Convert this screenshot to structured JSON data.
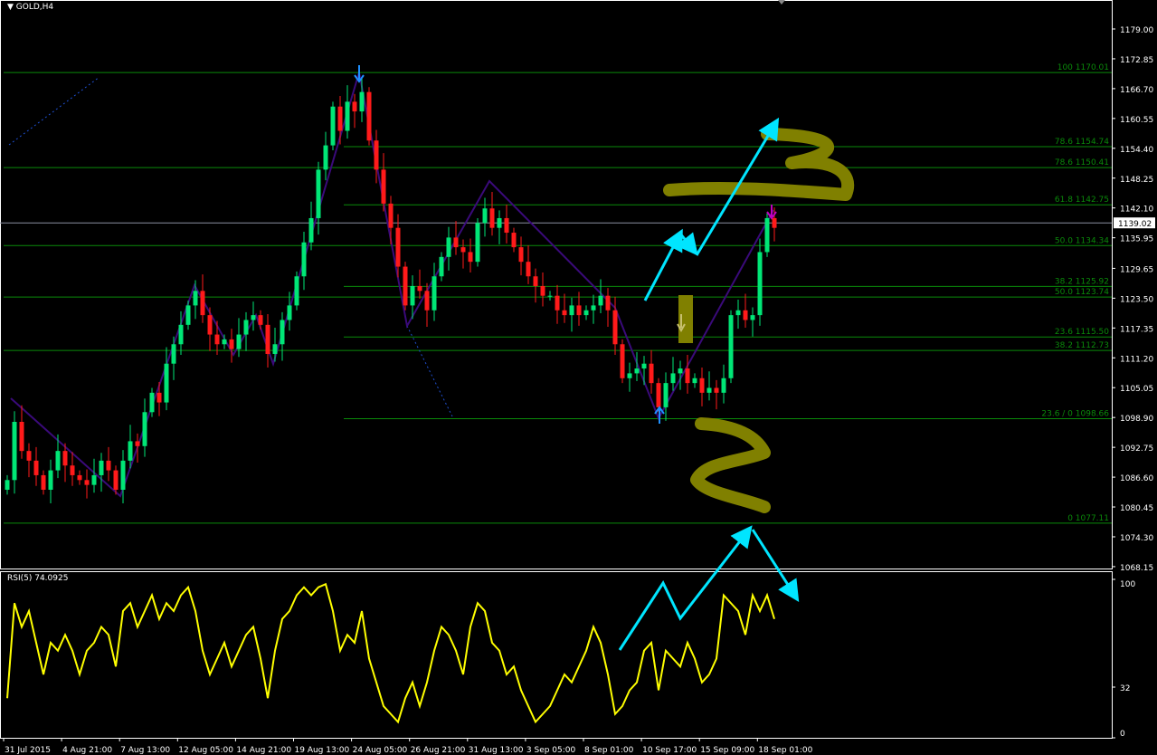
{
  "chart_data": [
    {
      "type": "candlestick",
      "title": "GOLD,H4",
      "ylim": [
        1065.07,
        1182.07
      ],
      "y_ticks": [
        "1179.00",
        "1172.85",
        "1166.70",
        "1160.55",
        "1154.40",
        "1148.25",
        "1142.10",
        "1135.95",
        "1129.65",
        "1123.50",
        "1117.35",
        "1111.20",
        "1105.05",
        "1098.90",
        "1092.75",
        "1086.60",
        "1080.45",
        "1074.30",
        "1068.15"
      ],
      "x_ticks": [
        "31 Jul 2015",
        "4 Aug 21:00",
        "7 Aug 13:00",
        "12 Aug 05:00",
        "14 Aug 21:00",
        "19 Aug 13:00",
        "24 Aug 05:00",
        "26 Aug 21:00",
        "31 Aug 13:00",
        "3 Sep 05:00",
        "8 Sep 01:00",
        "10 Sep 17:00",
        "15 Sep 09:00",
        "18 Sep 01:00"
      ],
      "current_price": "1139.02",
      "closes": [
        1086,
        1098,
        1092,
        1090,
        1087,
        1084,
        1088,
        1092,
        1089,
        1087,
        1086,
        1085,
        1087,
        1090,
        1088,
        1084,
        1090,
        1094,
        1093,
        1100,
        1104,
        1102,
        1110,
        1114,
        1118,
        1122,
        1125,
        1120,
        1116,
        1114,
        1115,
        1113,
        1116,
        1119,
        1120,
        1118,
        1112,
        1114,
        1119,
        1122,
        1128,
        1135,
        1140,
        1150,
        1155,
        1163,
        1158,
        1164,
        1162,
        1166,
        1156,
        1150,
        1143,
        1138,
        1130,
        1122,
        1126,
        1125,
        1121,
        1128,
        1132,
        1136,
        1134,
        1133,
        1131,
        1139,
        1142,
        1138,
        1140,
        1137,
        1134,
        1131,
        1128,
        1126,
        1124,
        1124,
        1121,
        1120,
        1122,
        1120,
        1121,
        1122,
        1124,
        1121,
        1114,
        1107,
        1108,
        1109,
        1110,
        1106,
        1101,
        1106,
        1108,
        1109,
        1106,
        1107,
        1104,
        1105,
        1104,
        1107,
        1120,
        1121,
        1119,
        1120,
        1133,
        1140,
        1138
      ],
      "fibonacci_levels": [
        {
          "label": "100 1170.01",
          "price": 1170.01
        },
        {
          "label": "78.6 1154.74",
          "price": 1154.74
        },
        {
          "label": "78.6 1150.41",
          "price": 1150.41
        },
        {
          "label": "61.8 1142.75",
          "price": 1142.75
        },
        {
          "label": "50.0 1134.34",
          "price": 1134.34
        },
        {
          "label": "38.2 1125.92",
          "price": 1125.92
        },
        {
          "label": "50.0 1123.74",
          "price": 1123.74
        },
        {
          "label": "23.6 1115.50",
          "price": 1115.5
        },
        {
          "label": "38.2 1112.73",
          "price": 1112.73
        },
        {
          "label": "23.6 / 0 1098.66",
          "price": 1098.66
        },
        {
          "label": "0 1077.11",
          "price": 1077.11
        }
      ],
      "colors": {
        "bull": "#00e676",
        "bear": "#ff1a1a",
        "fib": "#0a8a0a",
        "zigzag": "#3a0a7a",
        "arrows": "#00e5ff",
        "marker": "#808000"
      }
    },
    {
      "type": "line",
      "title": "RSI(5) 74.0925",
      "ylim": [
        0,
        100
      ],
      "y_ticks": [
        "100",
        "32",
        "0"
      ],
      "values": [
        25,
        85,
        70,
        80,
        60,
        40,
        60,
        55,
        65,
        55,
        40,
        55,
        60,
        70,
        65,
        45,
        80,
        85,
        70,
        80,
        90,
        75,
        85,
        80,
        90,
        95,
        80,
        55,
        40,
        50,
        60,
        45,
        55,
        65,
        70,
        50,
        25,
        55,
        75,
        80,
        90,
        95,
        90,
        95,
        97,
        80,
        55,
        65,
        60,
        80,
        50,
        35,
        20,
        15,
        10,
        25,
        35,
        20,
        35,
        55,
        70,
        65,
        55,
        40,
        70,
        85,
        80,
        60,
        55,
        40,
        45,
        30,
        20,
        10,
        15,
        20,
        30,
        40,
        35,
        45,
        55,
        70,
        60,
        40,
        15,
        20,
        30,
        35,
        55,
        60,
        30,
        55,
        50,
        45,
        60,
        50,
        35,
        40,
        50,
        90,
        85,
        80,
        65,
        90,
        80,
        90,
        75
      ],
      "color": "#ffff00"
    }
  ]
}
